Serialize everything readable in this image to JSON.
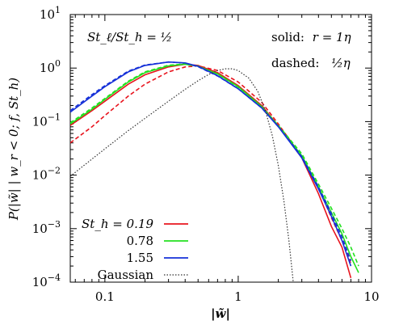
{
  "chart_data": {
    "type": "line",
    "xlabel": "|w̃|",
    "ylabel": "P(|w̃| | w_r < 0; f, St_h)",
    "xscale": "log",
    "yscale": "log",
    "xlim": [
      0.055,
      10
    ],
    "ylim": [
      0.0001,
      10
    ],
    "x_ticks": [
      {
        "value": 0.1,
        "label": "0.1"
      },
      {
        "value": 1,
        "label": "1"
      },
      {
        "value": 10,
        "label": "10"
      }
    ],
    "y_ticks": [
      {
        "value": 0.0001,
        "base": "10",
        "exp": "−4"
      },
      {
        "value": 0.001,
        "base": "10",
        "exp": "−3"
      },
      {
        "value": 0.01,
        "base": "10",
        "exp": "−2"
      },
      {
        "value": 0.1,
        "base": "10",
        "exp": "−1"
      },
      {
        "value": 1,
        "base": "10",
        "exp": "0"
      },
      {
        "value": 10,
        "base": "10",
        "exp": "1"
      }
    ],
    "grid": false,
    "annotations": {
      "ratio": "St_ℓ/St_h = ½",
      "solid_prefix": "solid:",
      "solid_value": "r = 1η",
      "dashed_prefix": "dashed:",
      "dashed_value": "½η"
    },
    "legend": {
      "position": "bottom-left",
      "entries": [
        {
          "label": "St_h = 0.19",
          "color": "#e8141e"
        },
        {
          "label": "0.78",
          "color": "#22e01f"
        },
        {
          "label": "1.55",
          "color": "#1530d8"
        },
        {
          "label": "Gaussian",
          "color": "#333333"
        }
      ]
    },
    "series": [
      {
        "name": "St_h = 0.19",
        "style": "solid",
        "color": "#e8141e",
        "x": [
          0.055,
          0.08,
          0.1,
          0.15,
          0.2,
          0.3,
          0.4,
          0.5,
          0.7,
          1.0,
          1.5,
          2.0,
          3.0,
          4.0,
          5.0,
          6.0,
          7.0
        ],
        "y": [
          0.085,
          0.16,
          0.24,
          0.5,
          0.75,
          1.05,
          1.18,
          1.12,
          0.82,
          0.47,
          0.2,
          0.083,
          0.021,
          0.0045,
          0.0011,
          0.00045,
          0.00012
        ]
      },
      {
        "name": "St_h = 0.19",
        "style": "dashed",
        "color": "#e8141e",
        "x": [
          0.055,
          0.08,
          0.1,
          0.15,
          0.2,
          0.3,
          0.4,
          0.5,
          0.7,
          1.0,
          1.5,
          2.0,
          3.0,
          4.0,
          5.0,
          6.0,
          7.0
        ],
        "y": [
          0.04,
          0.08,
          0.13,
          0.3,
          0.5,
          0.85,
          1.05,
          1.1,
          0.9,
          0.55,
          0.23,
          0.09,
          0.022,
          0.006,
          0.0016,
          0.0006,
          0.00022
        ]
      },
      {
        "name": "0.78",
        "style": "solid",
        "color": "#22e01f",
        "x": [
          0.055,
          0.08,
          0.1,
          0.15,
          0.2,
          0.3,
          0.4,
          0.5,
          0.7,
          1.0,
          1.5,
          2.0,
          3.0,
          4.0,
          5.0,
          6.0,
          7.0,
          8.0
        ],
        "y": [
          0.09,
          0.17,
          0.26,
          0.55,
          0.82,
          1.1,
          1.18,
          1.08,
          0.78,
          0.45,
          0.19,
          0.082,
          0.023,
          0.006,
          0.002,
          0.0008,
          0.0003,
          0.00015
        ]
      },
      {
        "name": "0.78",
        "style": "dashed",
        "color": "#22e01f",
        "x": [
          0.055,
          0.08,
          0.1,
          0.15,
          0.2,
          0.3,
          0.4,
          0.5,
          0.7,
          1.0,
          1.5,
          2.0,
          3.0,
          4.0,
          5.0,
          6.0,
          7.0,
          8.0
        ],
        "y": [
          0.095,
          0.18,
          0.27,
          0.57,
          0.85,
          1.13,
          1.2,
          1.09,
          0.77,
          0.44,
          0.19,
          0.085,
          0.025,
          0.0068,
          0.0024,
          0.001,
          0.00045,
          0.0002
        ]
      },
      {
        "name": "1.55",
        "style": "solid",
        "color": "#1530d8",
        "x": [
          0.055,
          0.08,
          0.1,
          0.15,
          0.2,
          0.3,
          0.4,
          0.5,
          0.7,
          1.0,
          1.5,
          2.0,
          3.0,
          4.0,
          5.0,
          6.0,
          7.0
        ],
        "y": [
          0.15,
          0.3,
          0.45,
          0.85,
          1.12,
          1.3,
          1.25,
          1.08,
          0.72,
          0.41,
          0.18,
          0.08,
          0.021,
          0.0055,
          0.0017,
          0.0006,
          0.0002
        ]
      },
      {
        "name": "1.55",
        "style": "dashed",
        "color": "#1530d8",
        "x": [
          0.055,
          0.08,
          0.1,
          0.15,
          0.2,
          0.3,
          0.4,
          0.5,
          0.7,
          1.0,
          1.5,
          2.0,
          3.0,
          4.0,
          5.0,
          6.0,
          7.0
        ],
        "y": [
          0.16,
          0.32,
          0.47,
          0.88,
          1.14,
          1.3,
          1.24,
          1.06,
          0.71,
          0.41,
          0.18,
          0.081,
          0.022,
          0.006,
          0.0019,
          0.0007,
          0.00025
        ]
      },
      {
        "name": "Gaussian",
        "style": "dotted",
        "color": "#333333",
        "x": [
          0.055,
          0.08,
          0.1,
          0.15,
          0.2,
          0.3,
          0.4,
          0.5,
          0.6,
          0.7,
          0.8,
          0.9,
          1.0,
          1.2,
          1.4,
          1.6,
          1.8,
          2.0,
          2.2,
          2.4,
          2.6,
          2.8
        ],
        "y": [
          0.0095,
          0.02,
          0.031,
          0.068,
          0.115,
          0.24,
          0.4,
          0.58,
          0.76,
          0.9,
          0.97,
          0.97,
          0.9,
          0.65,
          0.37,
          0.16,
          0.055,
          0.015,
          0.0033,
          0.0006,
          9e-05,
          1e-05
        ]
      }
    ]
  }
}
